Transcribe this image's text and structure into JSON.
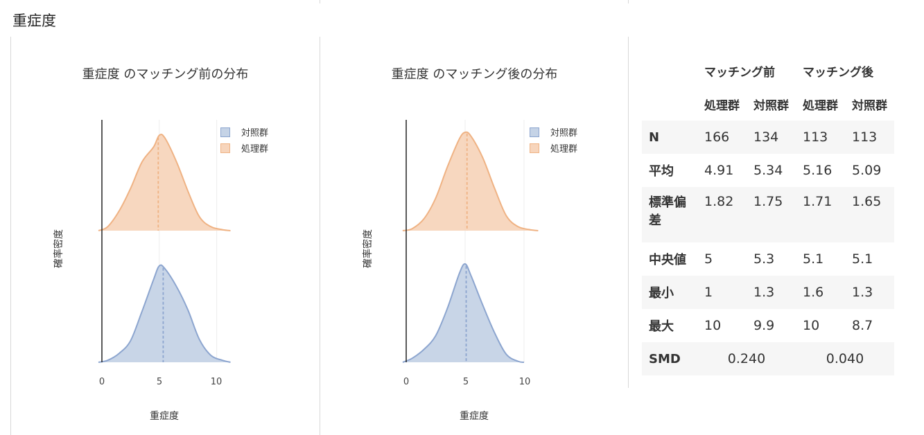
{
  "section_title": "重症度",
  "colors": {
    "control_fill": "#c5d3e6",
    "control_line": "#8ca5cf",
    "treated_fill": "#f7d5bc",
    "treated_line": "#efb283"
  },
  "chart_data": [
    {
      "type": "area",
      "title": "重症度 のマッチング前の分布",
      "xlabel": "重症度",
      "ylabel": "確率密度",
      "xlim": [
        0,
        11
      ],
      "xticks": [
        0,
        5,
        10
      ],
      "legend_position": "top-right",
      "series": [
        {
          "name": "対照群",
          "mean": 5.34,
          "x": [
            -0.3,
            0.5,
            1.5,
            2.5,
            3.5,
            4.5,
            5.0,
            5.5,
            6.5,
            7.5,
            8.5,
            9.5,
            10.5,
            11.2
          ],
          "y": [
            0.0,
            0.02,
            0.09,
            0.22,
            0.52,
            0.84,
            0.98,
            0.95,
            0.77,
            0.53,
            0.23,
            0.07,
            0.02,
            0.0
          ]
        },
        {
          "name": "処理群",
          "mean": 4.91,
          "x": [
            -0.3,
            0.5,
            1.5,
            2.5,
            3.5,
            4.5,
            5.0,
            5.5,
            6.5,
            7.5,
            8.5,
            9.5,
            10.5,
            11.2
          ],
          "y": [
            0.0,
            0.04,
            0.2,
            0.43,
            0.7,
            0.85,
            0.97,
            0.94,
            0.7,
            0.4,
            0.14,
            0.04,
            0.01,
            0.0
          ]
        }
      ]
    },
    {
      "type": "area",
      "title": "重症度 のマッチング後の分布",
      "xlabel": "重症度",
      "ylabel": "確率密度",
      "xlim": [
        0,
        11
      ],
      "xticks": [
        0,
        5,
        10
      ],
      "legend_position": "top-right",
      "series": [
        {
          "name": "対照群",
          "mean": 5.09,
          "x": [
            -0.3,
            0.5,
            1.5,
            2.5,
            3.5,
            4.5,
            5.0,
            5.5,
            6.5,
            7.5,
            8.5,
            9.5,
            10.0
          ],
          "y": [
            0.0,
            0.04,
            0.13,
            0.27,
            0.55,
            0.9,
            1.0,
            0.88,
            0.58,
            0.3,
            0.08,
            0.01,
            0.0
          ]
        },
        {
          "name": "処理群",
          "mean": 5.16,
          "x": [
            -0.3,
            0.5,
            1.5,
            2.5,
            3.5,
            4.5,
            5.0,
            5.5,
            6.5,
            7.5,
            8.5,
            9.5,
            10.5,
            11.2
          ],
          "y": [
            0.0,
            0.02,
            0.12,
            0.33,
            0.65,
            0.93,
            1.0,
            0.96,
            0.74,
            0.43,
            0.15,
            0.04,
            0.01,
            0.0
          ]
        }
      ]
    }
  ],
  "table": {
    "group_headers": [
      "マッチング前",
      "マッチング後"
    ],
    "sub_headers": [
      "処理群",
      "対照群",
      "処理群",
      "対照群"
    ],
    "rows": [
      {
        "label": "N",
        "values": [
          "166",
          "134",
          "113",
          "113"
        ]
      },
      {
        "label": "平均",
        "values": [
          "4.91",
          "5.34",
          "5.16",
          "5.09"
        ]
      },
      {
        "label": "標準偏差",
        "values": [
          "1.82",
          "1.75",
          "1.71",
          "1.65"
        ]
      },
      {
        "label": "中央値",
        "values": [
          "5",
          "5.3",
          "5.1",
          "5.1"
        ]
      },
      {
        "label": "最小",
        "values": [
          "1",
          "1.3",
          "1.6",
          "1.3"
        ]
      },
      {
        "label": "最大",
        "values": [
          "10",
          "9.9",
          "10",
          "8.7"
        ]
      }
    ],
    "smd": {
      "label": "SMD",
      "before": "0.240",
      "after": "0.040"
    }
  }
}
